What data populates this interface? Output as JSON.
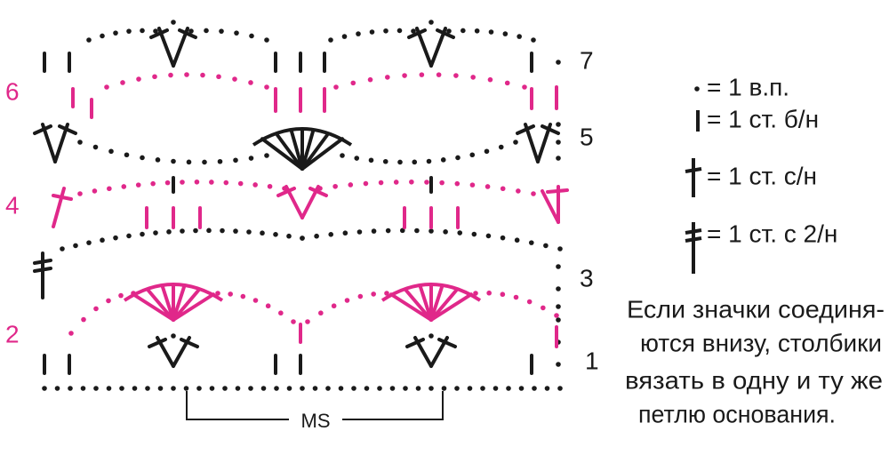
{
  "rows": [
    "1",
    "2",
    "3",
    "4",
    "5",
    "6",
    "7"
  ],
  "repeat_label": "MS",
  "legend": [
    "= 1 в.п.",
    "= 1 ст. б/н",
    "= 1 ст. с/н",
    "= 1 ст. с 2/н"
  ],
  "note": [
    "Если значки соединя-",
    "ются внизу, столбики",
    "вязать в одну и ту же",
    "петлю основания."
  ]
}
